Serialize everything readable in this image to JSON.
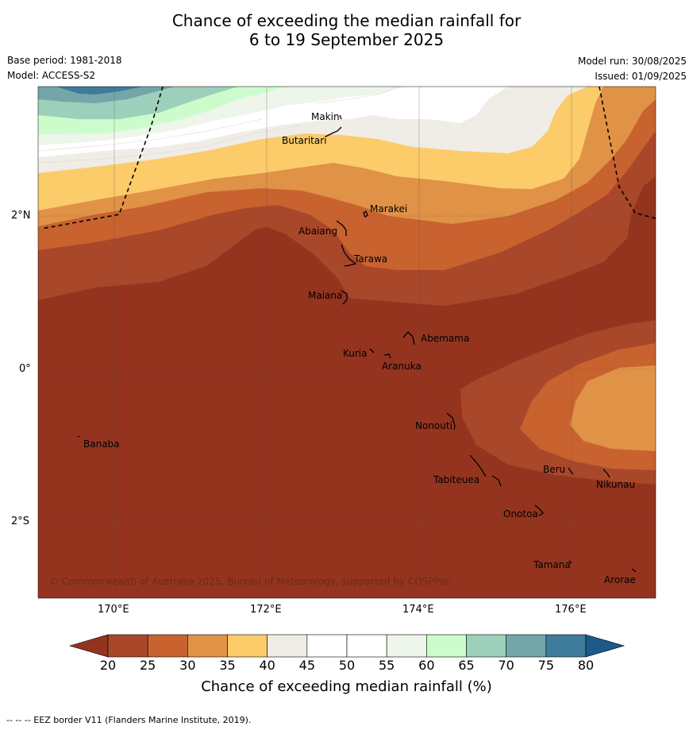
{
  "title_line1": "Chance of exceeding the median rainfall for",
  "title_line2": "6 to 19 September 2025",
  "base_period": "Base period: 1981-2018",
  "model": "Model: ACCESS-S2",
  "model_run": "Model run: 30/08/2025",
  "issued": "Issued: 01/09/2025",
  "copyright": "© Commonwealth of Australia 2025, Bureau of Meteorology, supported by COSPPac",
  "lat_labels": [
    "2°N",
    "0°",
    "2°S"
  ],
  "lon_labels": [
    "170°E",
    "172°E",
    "174°E",
    "176°E"
  ],
  "places": [
    {
      "name": "Makin"
    },
    {
      "name": "Butaritari"
    },
    {
      "name": "Marakei"
    },
    {
      "name": "Abaiang"
    },
    {
      "name": "Tarawa"
    },
    {
      "name": "Maiana"
    },
    {
      "name": "Abemama"
    },
    {
      "name": "Kuria"
    },
    {
      "name": "Aranuka"
    },
    {
      "name": "Banaba"
    },
    {
      "name": "Nonouti"
    },
    {
      "name": "Beru"
    },
    {
      "name": "Tabiteuea"
    },
    {
      "name": "Nikunau"
    },
    {
      "name": "Onotoa"
    },
    {
      "name": "Tamana"
    },
    {
      "name": "Arorae"
    }
  ],
  "colorbar": {
    "ticks": [
      "20",
      "25",
      "30",
      "35",
      "40",
      "45",
      "50",
      "55",
      "60",
      "65",
      "70",
      "75",
      "80"
    ],
    "colors": [
      "#a9472a",
      "#c8622f",
      "#e09246",
      "#fccb6a",
      "#f0ece6",
      "#ffffff",
      "#ffffff",
      "#eef5ea",
      "#ccfccc",
      "#9dd0bb",
      "#72a6a8",
      "#3f7b9a"
    ],
    "under_color": "#94341f",
    "over_color": "#1b5a8a",
    "label": "Chance of exceeding median rainfall (%)"
  },
  "footnote": "--  --  -- EEZ border V11 (Flanders Marine Institute, 2019)."
}
